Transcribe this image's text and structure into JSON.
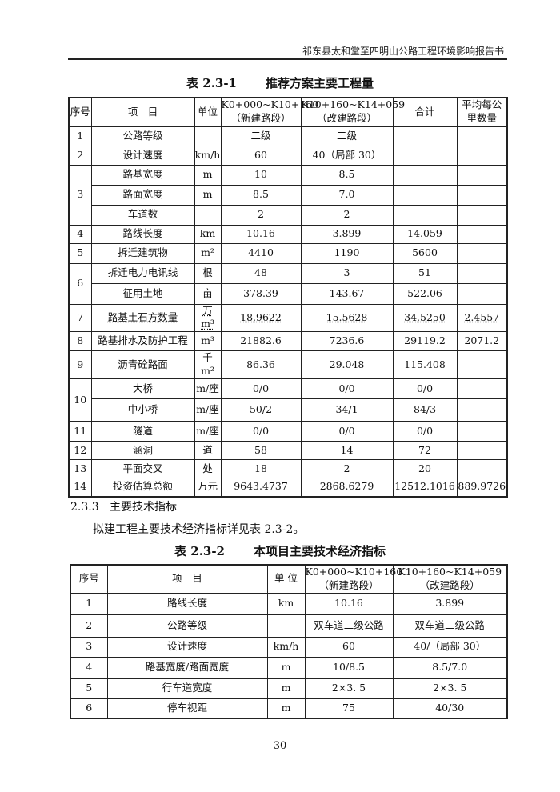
{
  "header": "祁东县太和堂至四明山公路工程环境影响报告书",
  "table1": {
    "number": "表 2.3-1",
    "title": "推荐方案主要工程量",
    "headers": [
      "序号",
      "项　目",
      "单位",
      "K0+000~K10+160（新建路段）",
      "K10+160~K14+059（改建路段）",
      "合计",
      "平均每公里数量"
    ],
    "rows": [
      {
        "no": "1",
        "item": "公路等级",
        "unit": "",
        "a": "二级",
        "b": "二级",
        "sum": "",
        "avg": ""
      },
      {
        "no": "2",
        "item": "设计速度",
        "unit": "km/h",
        "a": "60",
        "b": "40（局部 30）",
        "sum": "",
        "avg": ""
      },
      {
        "no": "3",
        "item": "路基宽度",
        "unit": "m",
        "a": "10",
        "b": "8.5",
        "sum": "",
        "avg": ""
      },
      {
        "no": "",
        "item": "路面宽度",
        "unit": "m",
        "a": "8.5",
        "b": "7.0",
        "sum": "",
        "avg": ""
      },
      {
        "no": "",
        "item": "车道数",
        "unit": "",
        "a": "2",
        "b": "2",
        "sum": "",
        "avg": ""
      },
      {
        "no": "4",
        "item": "路线长度",
        "unit": "km",
        "a": "10.16",
        "b": "3.899",
        "sum": "14.059",
        "avg": ""
      },
      {
        "no": "5",
        "item": "拆迁建筑物",
        "unit": "m²",
        "a": "4410",
        "b": "1190",
        "sum": "5600",
        "avg": ""
      },
      {
        "no": "6",
        "item": "拆迁电力电讯线",
        "unit": "根",
        "a": "48",
        "b": "3",
        "sum": "51",
        "avg": ""
      },
      {
        "no": "",
        "item": "征用土地",
        "unit": "亩",
        "a": "378.39",
        "b": "143.67",
        "sum": "522.06",
        "avg": ""
      },
      {
        "no": "7",
        "item": "路基土石方数量",
        "unit": "万 m³",
        "a": "18.9622",
        "b": "15.5628",
        "sum": "34.5250",
        "avg": "2.4557"
      },
      {
        "no": "8",
        "item": "路基排水及防护工程",
        "unit": "m³",
        "a": "21882.6",
        "b": "7236.6",
        "sum": "29119.2",
        "avg": "2071.2"
      },
      {
        "no": "9",
        "item": "沥青砼路面",
        "unit": "千 m²",
        "a": "86.36",
        "b": "29.048",
        "sum": "115.408",
        "avg": ""
      },
      {
        "no": "10",
        "item": "大桥",
        "unit": "m/座",
        "a": "0/0",
        "b": "0/0",
        "sum": "0/0",
        "avg": ""
      },
      {
        "no": "",
        "item": "中小桥",
        "unit": "m/座",
        "a": "50/2",
        "b": "34/1",
        "sum": "84/3",
        "avg": ""
      },
      {
        "no": "11",
        "item": "隧道",
        "unit": "m/座",
        "a": "0/0",
        "b": "0/0",
        "sum": "0/0",
        "avg": ""
      },
      {
        "no": "12",
        "item": "涵洞",
        "unit": "道",
        "a": "58",
        "b": "14",
        "sum": "72",
        "avg": ""
      },
      {
        "no": "13",
        "item": "平面交叉",
        "unit": "处",
        "a": "18",
        "b": "2",
        "sum": "20",
        "avg": ""
      },
      {
        "no": "14",
        "item": "投资估算总额",
        "unit": "万元",
        "a": "9643.4737",
        "b": "2868.6279",
        "sum": "12512.1016",
        "avg": "889.9726"
      }
    ]
  },
  "section": {
    "number": "2.3.3",
    "title": "主要技术指标"
  },
  "paragraph": "拟建工程主要技术经济指标详见表 2.3-2。",
  "table2": {
    "number": "表 2.3-2",
    "title": "本项目主要技术经济指标",
    "headers": [
      "序号",
      "项　目",
      "单 位",
      "K0+000~K10+160（新建路段）",
      "K10+160~K14+059（改建路段）"
    ],
    "rows": [
      {
        "no": "1",
        "item": "路线长度",
        "unit": "km",
        "a": "10.16",
        "b": "3.899"
      },
      {
        "no": "2",
        "item": "公路等级",
        "unit": "",
        "a": "双车道二级公路",
        "b": "双车道二级公路"
      },
      {
        "no": "3",
        "item": "设计速度",
        "unit": "km/h",
        "a": "60",
        "b": "40/（局部 30）"
      },
      {
        "no": "4",
        "item": "路基宽度/路面宽度",
        "unit": "m",
        "a": "10/8.5",
        "b": "8.5/7.0"
      },
      {
        "no": "5",
        "item": "行车道宽度",
        "unit": "m",
        "a": "2×3. 5",
        "b": "2×3. 5"
      },
      {
        "no": "6",
        "item": "停车视距",
        "unit": "m",
        "a": "75",
        "b": "40/30"
      }
    ]
  },
  "page_number": "30"
}
